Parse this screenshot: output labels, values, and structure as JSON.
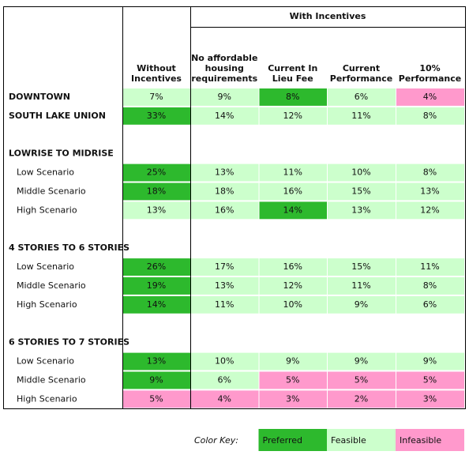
{
  "header": {
    "group": "With Incentives",
    "columns": [
      [
        "Without",
        "Incentives"
      ],
      [
        "No affordable",
        "housing",
        "requirements"
      ],
      [
        "Current In",
        "Lieu Fee"
      ],
      [
        "Current",
        "Performance"
      ],
      [
        "10%",
        "Performance"
      ]
    ]
  },
  "groups": [
    {
      "rows": [
        {
          "label": "DOWNTOWN",
          "cells": [
            "7%",
            "9%",
            "8%",
            "6%",
            "4%"
          ],
          "colors": [
            "#ccffcc",
            "#ccffcc",
            "#2db92d",
            "#ccffcc",
            "#ff99cc"
          ]
        },
        {
          "label": "SOUTH LAKE UNION",
          "cells": [
            "33%",
            "14%",
            "12%",
            "11%",
            "8%"
          ],
          "colors": [
            "#2db92d",
            "#ccffcc",
            "#ccffcc",
            "#ccffcc",
            "#ccffcc"
          ]
        }
      ]
    },
    {
      "title": "LOWRISE TO MIDRISE",
      "rows": [
        {
          "label": "Low Scenario",
          "cells": [
            "25%",
            "13%",
            "11%",
            "10%",
            "8%"
          ],
          "colors": [
            "#2db92d",
            "#ccffcc",
            "#ccffcc",
            "#ccffcc",
            "#ccffcc"
          ]
        },
        {
          "label": "Middle Scenario",
          "cells": [
            "18%",
            "18%",
            "16%",
            "15%",
            "13%"
          ],
          "colors": [
            "#2db92d",
            "#ccffcc",
            "#ccffcc",
            "#ccffcc",
            "#ccffcc"
          ]
        },
        {
          "label": "High Scenario",
          "cells": [
            "13%",
            "16%",
            "14%",
            "13%",
            "12%"
          ],
          "colors": [
            "#ccffcc",
            "#ccffcc",
            "#2db92d",
            "#ccffcc",
            "#ccffcc"
          ]
        }
      ]
    },
    {
      "title": "4 STORIES TO 6 STORIES",
      "rows": [
        {
          "label": "Low Scenario",
          "cells": [
            "26%",
            "17%",
            "16%",
            "15%",
            "11%"
          ],
          "colors": [
            "#2db92d",
            "#ccffcc",
            "#ccffcc",
            "#ccffcc",
            "#ccffcc"
          ]
        },
        {
          "label": "Middle Scenario",
          "cells": [
            "19%",
            "13%",
            "12%",
            "11%",
            "8%"
          ],
          "colors": [
            "#2db92d",
            "#ccffcc",
            "#ccffcc",
            "#ccffcc",
            "#ccffcc"
          ]
        },
        {
          "label": "High Scenario",
          "cells": [
            "14%",
            "11%",
            "10%",
            "9%",
            "6%"
          ],
          "colors": [
            "#2db92d",
            "#ccffcc",
            "#ccffcc",
            "#ccffcc",
            "#ccffcc"
          ]
        }
      ]
    },
    {
      "title": "6 STORIES TO 7 STORIES",
      "rows": [
        {
          "label": "Low Scenario",
          "cells": [
            "13%",
            "10%",
            "9%",
            "9%",
            "9%"
          ],
          "colors": [
            "#2db92d",
            "#ccffcc",
            "#ccffcc",
            "#ccffcc",
            "#ccffcc"
          ]
        },
        {
          "label": "Middle Scenario",
          "cells": [
            "9%",
            "6%",
            "5%",
            "5%",
            "5%"
          ],
          "colors": [
            "#2db92d",
            "#ccffcc",
            "#ff99cc",
            "#ff99cc",
            "#ff99cc"
          ]
        },
        {
          "label": "High Scenario",
          "cells": [
            "5%",
            "4%",
            "3%",
            "2%",
            "3%"
          ],
          "colors": [
            "#ff99cc",
            "#ff99cc",
            "#ff99cc",
            "#ff99cc",
            "#ff99cc"
          ]
        }
      ]
    }
  ],
  "key": {
    "title": "Color Key:",
    "items": [
      {
        "label": "Preferred",
        "color": "#2db92d"
      },
      {
        "label": "Feasible",
        "color": "#ccffcc"
      },
      {
        "label": "Infeasible",
        "color": "#ff99cc"
      }
    ]
  }
}
